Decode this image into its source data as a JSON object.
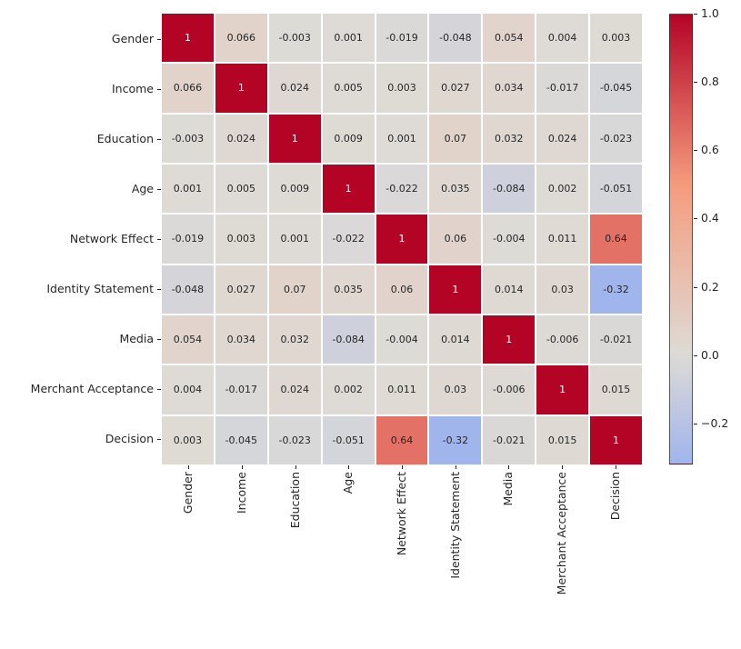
{
  "figure": {
    "background": "#ffffff",
    "text_color": "#262626"
  },
  "chart_data": {
    "type": "heatmap",
    "title": "",
    "categories": [
      "Gender",
      "Income",
      "Education",
      "Age",
      "Network Effect",
      "Identity Statement",
      "Media",
      "Merchant Acceptance",
      "Decision"
    ],
    "matrix": [
      [
        1,
        0.066,
        -0.003,
        0.001,
        -0.019,
        -0.048,
        0.054,
        0.004,
        0.003
      ],
      [
        0.066,
        1,
        0.024,
        0.005,
        0.003,
        0.027,
        0.034,
        -0.017,
        -0.045
      ],
      [
        -0.003,
        0.024,
        1,
        0.009,
        0.001,
        0.07,
        0.032,
        0.024,
        -0.023
      ],
      [
        0.001,
        0.005,
        0.009,
        1,
        -0.022,
        0.035,
        -0.084,
        0.002,
        -0.051
      ],
      [
        -0.019,
        0.003,
        0.001,
        -0.022,
        1,
        0.06,
        -0.004,
        0.011,
        0.64
      ],
      [
        -0.048,
        0.027,
        0.07,
        0.035,
        0.06,
        1,
        0.014,
        0.03,
        -0.32
      ],
      [
        0.054,
        0.034,
        0.032,
        -0.084,
        -0.004,
        0.014,
        1,
        -0.006,
        -0.021
      ],
      [
        0.004,
        -0.017,
        0.024,
        0.002,
        0.011,
        0.03,
        -0.006,
        1,
        0.015
      ],
      [
        0.003,
        -0.045,
        -0.023,
        -0.051,
        0.64,
        -0.32,
        -0.021,
        0.015,
        1
      ]
    ],
    "annotated": true,
    "grid_line_color": "#ffffff",
    "colormap": {
      "name": "coolwarm",
      "anchors": [
        "#3b4cc0",
        "#7c9ff9",
        "#dedbd6",
        "#f59c7d",
        "#b40426"
      ],
      "anchor_positions": [
        0,
        0.25,
        0.5,
        0.75,
        1
      ],
      "norm_min": -1,
      "norm_max": 1
    },
    "colorbar": {
      "min": -0.32,
      "max": 1.0,
      "ticks": [
        {
          "label": "1.0",
          "value": 1.0
        },
        {
          "label": "0.8",
          "value": 0.8
        },
        {
          "label": "0.6",
          "value": 0.6
        },
        {
          "label": "0.4",
          "value": 0.4
        },
        {
          "label": "0.2",
          "value": 0.2
        },
        {
          "label": "0.0",
          "value": 0.0
        },
        {
          "label": "−0.2",
          "value": -0.2
        }
      ]
    }
  }
}
